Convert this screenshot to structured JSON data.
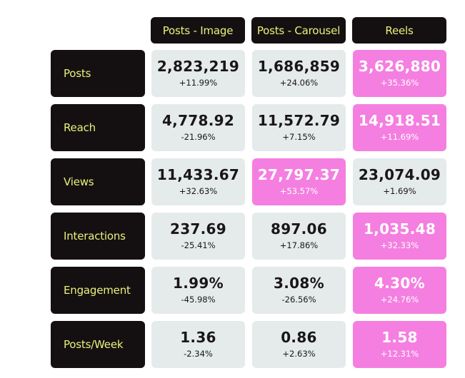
{
  "columns": [
    {
      "label": "Posts - Image"
    },
    {
      "label": "Posts - Carousel"
    },
    {
      "label": "Reels"
    }
  ],
  "rows": [
    {
      "label": "Posts",
      "cells": [
        {
          "value": "2,823,219",
          "change": "+11.99%",
          "highlight": false
        },
        {
          "value": "1,686,859",
          "change": "+24.06%",
          "highlight": false
        },
        {
          "value": "3,626,880",
          "change": "+35.36%",
          "highlight": true
        }
      ]
    },
    {
      "label": "Reach",
      "cells": [
        {
          "value": "4,778.92",
          "change": "-21.96%",
          "highlight": false
        },
        {
          "value": "11,572.79",
          "change": "+7.15%",
          "highlight": false
        },
        {
          "value": "14,918.51",
          "change": "+11.69%",
          "highlight": true
        }
      ]
    },
    {
      "label": "Views",
      "cells": [
        {
          "value": "11,433.67",
          "change": "+32.63%",
          "highlight": false
        },
        {
          "value": "27,797.37",
          "change": "+53.57%",
          "highlight": true
        },
        {
          "value": "23,074.09",
          "change": "+1.69%",
          "highlight": false
        }
      ]
    },
    {
      "label": "Interactions",
      "cells": [
        {
          "value": "237.69",
          "change": "-25.41%",
          "highlight": false
        },
        {
          "value": "897.06",
          "change": "+17.86%",
          "highlight": false
        },
        {
          "value": "1,035.48",
          "change": "+32.33%",
          "highlight": true
        }
      ]
    },
    {
      "label": "Engagement",
      "cells": [
        {
          "value": "1.99%",
          "change": "-45.98%",
          "highlight": false
        },
        {
          "value": "3.08%",
          "change": "-26.56%",
          "highlight": false
        },
        {
          "value": "4.30%",
          "change": "+24.76%",
          "highlight": true
        }
      ]
    },
    {
      "label": "Posts/Week",
      "cells": [
        {
          "value": "1.36",
          "change": "-2.34%",
          "highlight": false
        },
        {
          "value": "0.86",
          "change": "+2.63%",
          "highlight": false
        },
        {
          "value": "1.58",
          "change": "+12.31%",
          "highlight": true
        }
      ]
    }
  ],
  "colors": {
    "label_bg": "#141012",
    "label_text": "#e9f27a",
    "cell_bg": "#e4ebea",
    "highlight_bg": "#f47fe0"
  }
}
